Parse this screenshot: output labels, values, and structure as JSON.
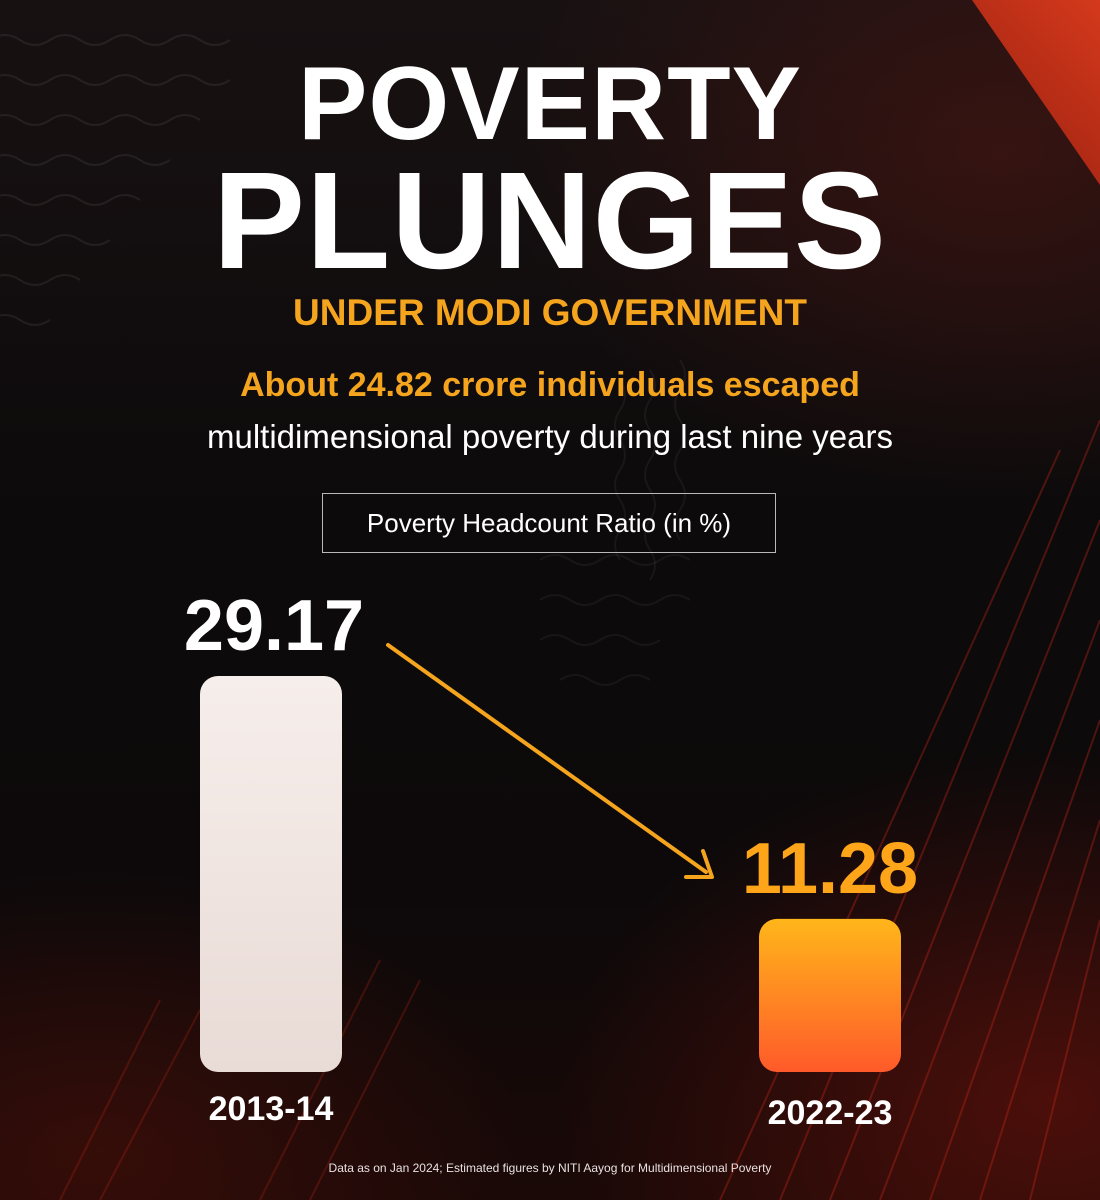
{
  "header": {
    "title_line1": "POVERTY",
    "title_line2": "PLUNGES",
    "subtitle": "UNDER MODI GOVERNMENT",
    "headline": "About 24.82 crore individuals escaped",
    "subline": "multidimensional poverty during last nine years"
  },
  "chart_data": {
    "type": "bar",
    "title": "Poverty Headcount Ratio (in %)",
    "categories": [
      "2013-14",
      "2022-23"
    ],
    "values": [
      29.17,
      11.28
    ],
    "value_labels": [
      "29.17",
      "11.28"
    ],
    "bar_colors": [
      "#f1e4df",
      "#ff9c1c"
    ],
    "value_label_colors": [
      "#ffffff",
      "#ffa51a"
    ],
    "annotation": "downward arrow from 2013-14 value to 2022-23 value",
    "xlabel": "",
    "ylabel": "",
    "grid": false,
    "legend": "none"
  },
  "footer": {
    "note": "Data as on Jan 2024; Estimated figures by NITI Aayog for Multidimensional Poverty"
  },
  "colors": {
    "accent": "#f5a41e",
    "arrow": "#f5a41e",
    "background": "#0d0a0b",
    "corner": "#c8341a"
  }
}
